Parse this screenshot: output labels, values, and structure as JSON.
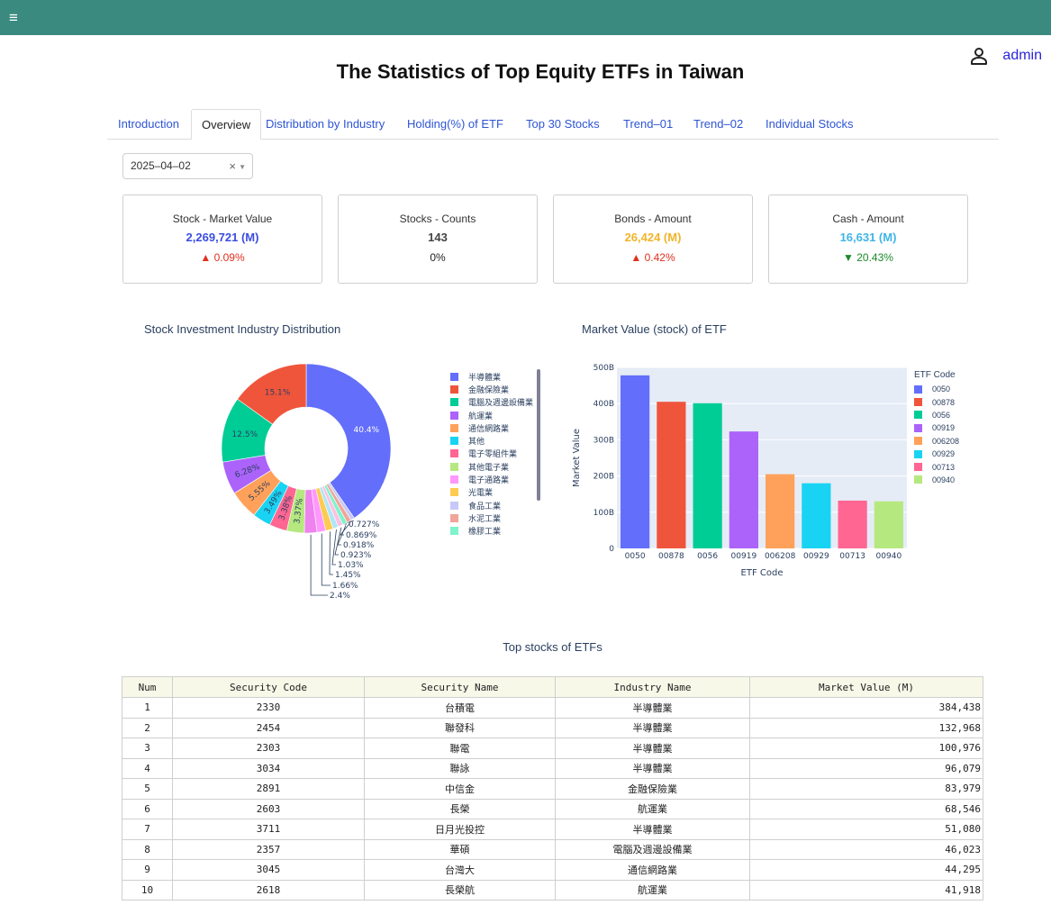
{
  "header": {
    "menu_icon": "≡",
    "user_label": "admin"
  },
  "page": {
    "title": "The Statistics of Top Equity ETFs in Taiwan"
  },
  "tabs": [
    {
      "label": "Introduction"
    },
    {
      "label": "Overview"
    },
    {
      "label": "Distribution by Industry"
    },
    {
      "label": "Holding(%) of ETF"
    },
    {
      "label": "Top 30 Stocks"
    },
    {
      "label": "Trend–01"
    },
    {
      "label": "Trend–02"
    },
    {
      "label": "Individual Stocks"
    }
  ],
  "active_tab": "Overview",
  "date_picker": {
    "value": "2025–04–02",
    "clear": "×",
    "caret": "▼"
  },
  "cards": [
    {
      "label": "Stock - Market Value",
      "value": "2,269,721 (M)",
      "change": "▲ 0.09%",
      "value_color": "#3b4de0",
      "change_color": "#e0301e"
    },
    {
      "label": "Stocks - Counts",
      "value": "143",
      "change": "0%",
      "value_color": "#444444",
      "change_color": "#222222"
    },
    {
      "label": "Bonds - Amount",
      "value": "26,424 (M)",
      "change": "▲ 0.42%",
      "value_color": "#f0b428",
      "change_color": "#e0301e"
    },
    {
      "label": "Cash - Amount",
      "value": "16,631 (M)",
      "change": "▼ 20.43%",
      "value_color": "#3fb4e8",
      "change_color": "#1a8a2a"
    }
  ],
  "pie": {
    "title": "Stock Investment Industry Distribution",
    "legend": [
      {
        "label": "半導體業",
        "color": "#636efa"
      },
      {
        "label": "金融保險業",
        "color": "#ef553b"
      },
      {
        "label": "電腦及週邊設備業",
        "color": "#00cc96"
      },
      {
        "label": "航運業",
        "color": "#ab63fa"
      },
      {
        "label": "通信網路業",
        "color": "#ffa15a"
      },
      {
        "label": "其他",
        "color": "#19d3f3"
      },
      {
        "label": "電子零組件業",
        "color": "#ff6692"
      },
      {
        "label": "其他電子業",
        "color": "#b6e880"
      },
      {
        "label": "電子通路業",
        "color": "#ff97ff"
      },
      {
        "label": "光電業",
        "color": "#fecb52"
      },
      {
        "label": "食品工業",
        "color": "#c6c9f7"
      },
      {
        "label": "水泥工業",
        "color": "#f0a59a"
      },
      {
        "label": "橡膠工業",
        "color": "#7ff3cc"
      }
    ]
  },
  "bar": {
    "title": "Market Value (stock) of ETF",
    "legend_title": "ETF Code",
    "xlabel": "ETF Code",
    "ylabel": "Market Value"
  },
  "chart_data": [
    {
      "type": "pie",
      "title": "Stock Investment Industry Distribution",
      "hole": true,
      "slices": [
        {
          "label": "半導體業",
          "value": 40.4,
          "text": "40.4%",
          "color": "#636efa"
        },
        {
          "label": "",
          "value": 0.727,
          "text": "0.727%",
          "color": "#c6c9f7"
        },
        {
          "label": "",
          "value": 0.869,
          "text": "0.869%",
          "color": "#f0a59a"
        },
        {
          "label": "",
          "value": 0.918,
          "text": "0.918%",
          "color": "#7ff3cc"
        },
        {
          "label": "",
          "value": 0.923,
          "text": "0.923%",
          "color": "#ffc0e0"
        },
        {
          "label": "",
          "value": 1.03,
          "text": "1.03%",
          "color": "#aee6f8"
        },
        {
          "label": "",
          "value": 1.45,
          "text": "1.45%",
          "color": "#fecb52"
        },
        {
          "label": "",
          "value": 1.66,
          "text": "1.66%",
          "color": "#ff97ff"
        },
        {
          "label": "",
          "value": 2.4,
          "text": "2.4%",
          "color": "#ee82ee"
        },
        {
          "label": "其他電子業",
          "value": 3.37,
          "text": "3.37%",
          "color": "#b6e880"
        },
        {
          "label": "電子零組件業",
          "value": 3.38,
          "text": "3.38%",
          "color": "#ff6692"
        },
        {
          "label": "其他",
          "value": 3.49,
          "text": "3.49%",
          "color": "#19d3f3"
        },
        {
          "label": "通信網路業",
          "value": 5.55,
          "text": "5.55%",
          "color": "#ffa15a"
        },
        {
          "label": "航運業",
          "value": 6.28,
          "text": "6.28%",
          "color": "#ab63fa"
        },
        {
          "label": "電腦及週邊設備業",
          "value": 12.5,
          "text": "12.5%",
          "color": "#00cc96"
        },
        {
          "label": "金融保險業",
          "value": 15.1,
          "text": "15.1%",
          "color": "#ef553b"
        }
      ]
    },
    {
      "type": "bar",
      "title": "Market Value (stock) of ETF",
      "xlabel": "ETF Code",
      "ylabel": "Market Value",
      "categories": [
        "0050",
        "00878",
        "0056",
        "00919",
        "006208",
        "00929",
        "00713",
        "00940"
      ],
      "values": [
        478,
        405,
        401,
        323,
        205,
        180,
        132,
        130
      ],
      "colors": [
        "#636efa",
        "#ef553b",
        "#00cc96",
        "#ab63fa",
        "#ffa15a",
        "#19d3f3",
        "#ff6692",
        "#b6e880"
      ],
      "yticks": [
        "0",
        "100B",
        "200B",
        "300B",
        "400B",
        "500B"
      ],
      "ylim": [
        0,
        500
      ],
      "grid": true,
      "legend_title": "ETF Code",
      "legend": "right"
    }
  ],
  "table": {
    "title": "Top stocks of ETFs",
    "columns": [
      "Num",
      "Security Code",
      "Security Name",
      "Industry Name",
      "Market Value (M)"
    ],
    "rows": [
      [
        "1",
        "2330",
        "台積電",
        "半導體業",
        "384,438"
      ],
      [
        "2",
        "2454",
        "聯發科",
        "半導體業",
        "132,968"
      ],
      [
        "3",
        "2303",
        "聯電",
        "半導體業",
        "100,976"
      ],
      [
        "4",
        "3034",
        "聯詠",
        "半導體業",
        "96,079"
      ],
      [
        "5",
        "2891",
        "中信金",
        "金融保險業",
        "83,979"
      ],
      [
        "6",
        "2603",
        "長榮",
        "航運業",
        "68,546"
      ],
      [
        "7",
        "3711",
        "日月光投控",
        "半導體業",
        "51,080"
      ],
      [
        "8",
        "2357",
        "華碩",
        "電腦及週邊設備業",
        "46,023"
      ],
      [
        "9",
        "3045",
        "台灣大",
        "通信網路業",
        "44,295"
      ],
      [
        "10",
        "2618",
        "長榮航",
        "航運業",
        "41,918"
      ]
    ]
  }
}
